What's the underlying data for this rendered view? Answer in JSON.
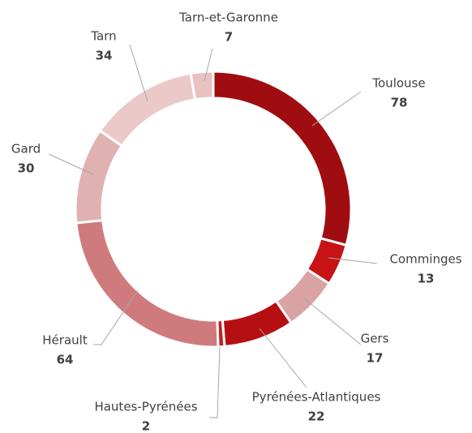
{
  "chart_data": {
    "type": "donut",
    "categories": [
      "Toulouse",
      "Comminges",
      "Gers",
      "Pyrénées-Atlantiques",
      "Hautes-Pyrénées",
      "Hérault",
      "Gard",
      "Tarn",
      "Tarn-et-Garonne"
    ],
    "values": [
      78,
      13,
      17,
      22,
      2,
      64,
      30,
      34,
      7
    ],
    "colors": [
      "#a00d10",
      "#c71316",
      "#d9a3a3",
      "#b50f12",
      "#c02022",
      "#cf7b7d",
      "#e0b1b1",
      "#ebc9c9",
      "#e8c2c2"
    ]
  }
}
